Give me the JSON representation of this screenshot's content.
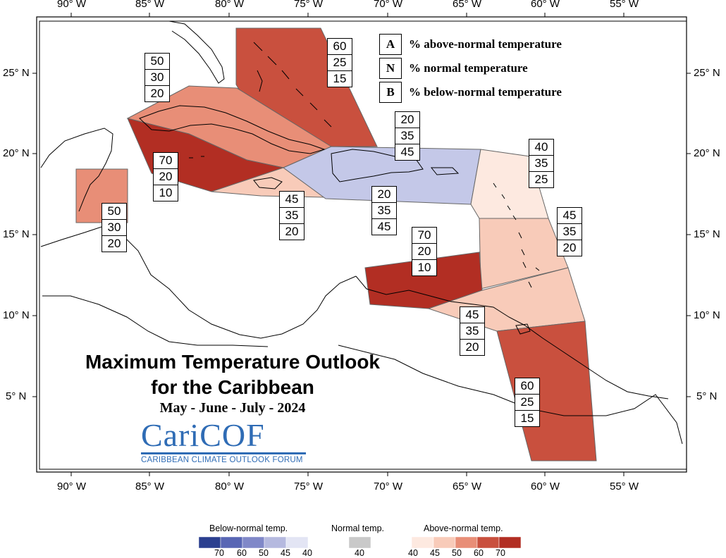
{
  "map": {
    "title_line1": "Maximum Temperature Outlook",
    "title_line2": "for the Caribbean",
    "season": "May - June - July - 2024",
    "logo": {
      "name": "CariCOF",
      "subtitle": "CARIBBEAN CLIMATE OUTLOOK FORUM"
    },
    "key": {
      "a_letter": "A",
      "a_text": "% above-normal temperature",
      "n_letter": "N",
      "n_text": "% normal temperature",
      "b_letter": "B",
      "b_text": "% below-normal temperature"
    },
    "axis": {
      "bottom": [
        "90° W",
        "85° W",
        "80° W",
        "75° W",
        "70° W",
        "65° W",
        "60° W",
        "55° W"
      ],
      "top": [
        "90° W",
        "85° W",
        "80° W",
        "75° W",
        "70° W",
        "65° W",
        "60° W",
        "55° W"
      ],
      "left": [
        "25° N",
        "20° N",
        "15° N",
        "10° N",
        "5° N"
      ],
      "right": [
        "25° N",
        "20° N",
        "15° N",
        "10° N",
        "5° N"
      ]
    },
    "regions": [
      {
        "id": "bahamas",
        "probs": [
          "60",
          "25",
          "15"
        ],
        "color": "#c9503e"
      },
      {
        "id": "cuba",
        "probs": [
          "50",
          "30",
          "20"
        ],
        "color": "#e88e77"
      },
      {
        "id": "cayman",
        "probs": [
          "70",
          "20",
          "10"
        ],
        "color": "#b22e23"
      },
      {
        "id": "belize",
        "probs": [
          "50",
          "30",
          "20"
        ],
        "color": "#e88e77"
      },
      {
        "id": "jamaica",
        "probs": [
          "45",
          "35",
          "20"
        ],
        "color": "#f8cbb9"
      },
      {
        "id": "hispaniola-north",
        "probs": [
          "20",
          "35",
          "45"
        ],
        "color": "#c4c8e8"
      },
      {
        "id": "hispaniola-south",
        "probs": [
          "20",
          "35",
          "45"
        ],
        "color": "#c4c8e8"
      },
      {
        "id": "leeward",
        "probs": [
          "40",
          "35",
          "25"
        ],
        "color": "#fde9e0"
      },
      {
        "id": "windward",
        "probs": [
          "45",
          "35",
          "20"
        ],
        "color": "#f8cbb9"
      },
      {
        "id": "abc-islands",
        "probs": [
          "70",
          "20",
          "10"
        ],
        "color": "#b22e23"
      },
      {
        "id": "trinidad",
        "probs": [
          "45",
          "35",
          "20"
        ],
        "color": "#f8cbb9"
      },
      {
        "id": "guianas",
        "probs": [
          "60",
          "25",
          "15"
        ],
        "color": "#c9503e"
      }
    ]
  },
  "colorbar": {
    "below_title": "Below-normal temp.",
    "normal_title": "Normal temp.",
    "above_title": "Above-normal temp.",
    "below_labels": [
      "70",
      "60",
      "50",
      "45",
      "40"
    ],
    "normal_labels": [
      "40"
    ],
    "above_labels": [
      "40",
      "45",
      "50",
      "60",
      "70"
    ],
    "below_colors": [
      "#2b3f8f",
      "#5866b4",
      "#8088c8",
      "#b5b9df",
      "#e3e5f4"
    ],
    "normal_colors": [
      "#c9c9c9"
    ],
    "above_colors": [
      "#fde9e0",
      "#f8cbb9",
      "#e88e77",
      "#c9503e",
      "#b22e23"
    ]
  }
}
